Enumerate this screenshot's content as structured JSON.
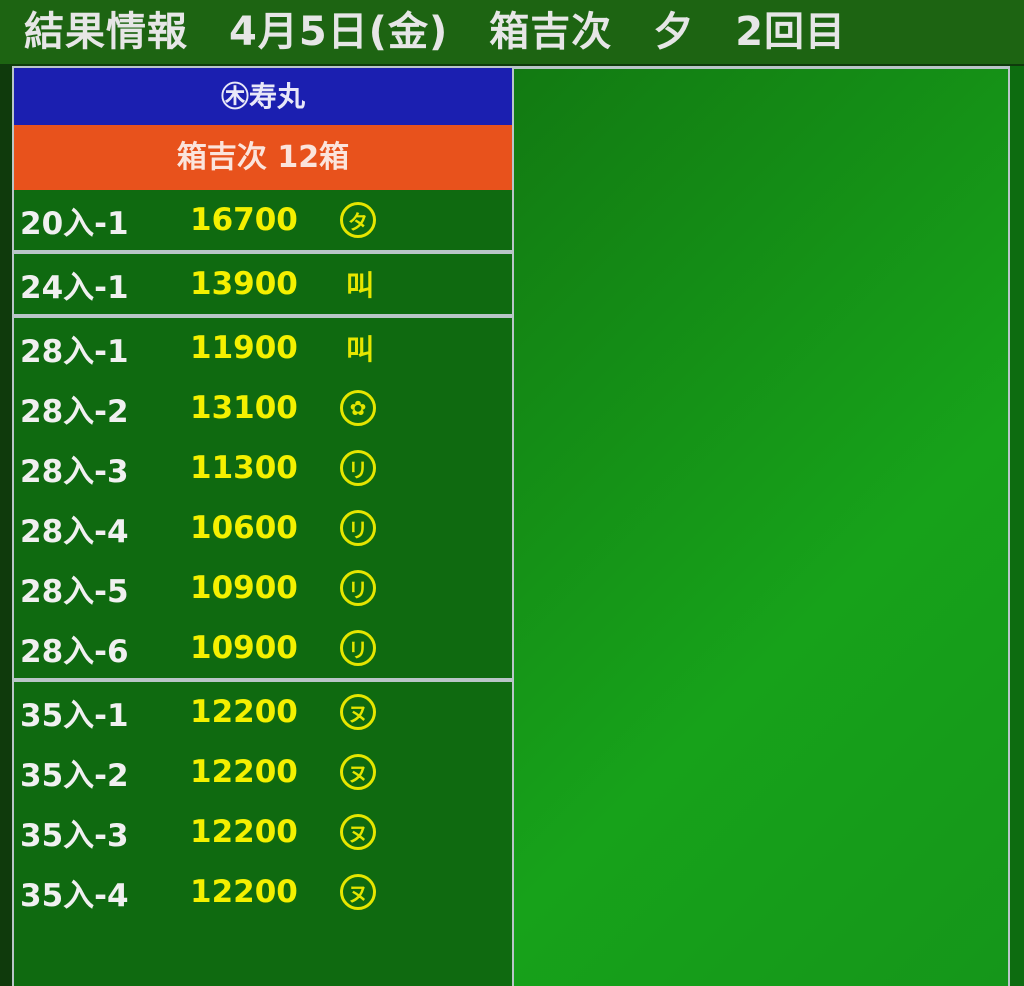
{
  "header": {
    "title": "結果情報　4月5日(金)　箱吉次　夕　2回目"
  },
  "panel": {
    "buyer": "㊍寿丸",
    "summary": "箱吉次 12箱",
    "colors": {
      "buyer_bg": "#1b1fb0",
      "summary_bg": "#e8521c",
      "price": "#f4f000",
      "mark": "#e6e600"
    },
    "groups": [
      [
        {
          "grade": "20入-1",
          "price": "16700",
          "mark": "タ",
          "mark_icon": "circled-ta-icon",
          "circled": true
        }
      ],
      [
        {
          "grade": "24入-1",
          "price": "13900",
          "mark": "叫",
          "mark_icon": "buyer-mark-icon",
          "circled": false
        }
      ],
      [
        {
          "grade": "28入-1",
          "price": "11900",
          "mark": "叫",
          "mark_icon": "buyer-mark-icon",
          "circled": false
        },
        {
          "grade": "28入-2",
          "price": "13100",
          "mark": "✿",
          "mark_icon": "circled-flower-icon",
          "circled": true
        },
        {
          "grade": "28入-3",
          "price": "11300",
          "mark": "リ",
          "mark_icon": "circled-ri-icon",
          "circled": true
        },
        {
          "grade": "28入-4",
          "price": "10600",
          "mark": "リ",
          "mark_icon": "circled-ri-icon",
          "circled": true
        },
        {
          "grade": "28入-5",
          "price": "10900",
          "mark": "リ",
          "mark_icon": "circled-ri-icon",
          "circled": true
        },
        {
          "grade": "28入-6",
          "price": "10900",
          "mark": "リ",
          "mark_icon": "circled-ri-icon",
          "circled": true
        }
      ],
      [
        {
          "grade": "35入-1",
          "price": "12200",
          "mark": "ヌ",
          "mark_icon": "circled-nu-icon",
          "circled": true
        },
        {
          "grade": "35入-2",
          "price": "12200",
          "mark": "ヌ",
          "mark_icon": "circled-nu-icon",
          "circled": true
        },
        {
          "grade": "35入-3",
          "price": "12200",
          "mark": "ヌ",
          "mark_icon": "circled-nu-icon",
          "circled": true
        },
        {
          "grade": "35入-4",
          "price": "12200",
          "mark": "ヌ",
          "mark_icon": "circled-nu-icon",
          "circled": true
        }
      ]
    ]
  }
}
